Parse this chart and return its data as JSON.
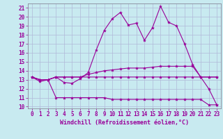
{
  "xlabel": "Windchill (Refroidissement éolien,°C)",
  "bg_color": "#c8eaf0",
  "grid_color": "#b0b8d8",
  "line_color": "#990099",
  "spine_color": "#888899",
  "xlim": [
    -0.5,
    23.5
  ],
  "ylim": [
    9.8,
    21.5
  ],
  "yticks": [
    10,
    11,
    12,
    13,
    14,
    15,
    16,
    17,
    18,
    19,
    20,
    21
  ],
  "xticks": [
    0,
    1,
    2,
    3,
    4,
    5,
    6,
    7,
    8,
    9,
    10,
    11,
    12,
    13,
    14,
    15,
    16,
    17,
    18,
    19,
    20,
    21,
    22,
    23
  ],
  "line1_x": [
    0,
    1,
    2,
    3,
    4,
    5,
    6,
    7,
    8,
    9,
    10,
    11,
    12,
    13,
    14,
    15,
    16,
    17,
    18,
    19,
    20,
    21,
    22,
    23
  ],
  "line1_y": [
    13.3,
    12.8,
    13.0,
    13.3,
    12.7,
    12.6,
    13.1,
    13.8,
    16.3,
    18.5,
    19.8,
    20.5,
    19.1,
    19.3,
    17.4,
    18.8,
    21.2,
    19.4,
    19.0,
    17.0,
    14.7,
    13.3,
    12.0,
    10.2
  ],
  "line2_x": [
    0,
    1,
    2,
    3,
    4,
    5,
    6,
    7,
    8,
    9,
    10,
    11,
    12,
    13,
    14,
    15,
    16,
    17,
    18,
    19,
    20,
    21,
    22,
    23
  ],
  "line2_y": [
    13.3,
    13.0,
    13.0,
    13.3,
    13.3,
    13.3,
    13.3,
    13.6,
    13.8,
    14.0,
    14.1,
    14.2,
    14.3,
    14.3,
    14.3,
    14.4,
    14.5,
    14.5,
    14.5,
    14.5,
    14.5,
    13.3,
    13.3,
    13.3
  ],
  "line3_x": [
    0,
    1,
    2,
    3,
    4,
    5,
    6,
    7,
    8,
    9,
    10,
    11,
    12,
    13,
    14,
    15,
    16,
    17,
    18,
    19,
    20,
    21,
    22,
    23
  ],
  "line3_y": [
    13.3,
    13.0,
    13.0,
    13.3,
    13.3,
    13.3,
    13.3,
    13.3,
    13.3,
    13.3,
    13.3,
    13.3,
    13.3,
    13.3,
    13.3,
    13.3,
    13.3,
    13.3,
    13.3,
    13.3,
    13.3,
    13.3,
    13.3,
    13.3
  ],
  "line4_x": [
    0,
    1,
    2,
    3,
    4,
    5,
    6,
    7,
    8,
    9,
    10,
    11,
    12,
    13,
    14,
    15,
    16,
    17,
    18,
    19,
    20,
    21,
    22,
    23
  ],
  "line4_y": [
    13.3,
    13.0,
    13.0,
    11.0,
    11.0,
    11.0,
    11.0,
    11.0,
    11.0,
    11.0,
    10.8,
    10.8,
    10.8,
    10.8,
    10.8,
    10.8,
    10.8,
    10.8,
    10.8,
    10.8,
    10.8,
    10.8,
    10.2,
    10.2
  ]
}
